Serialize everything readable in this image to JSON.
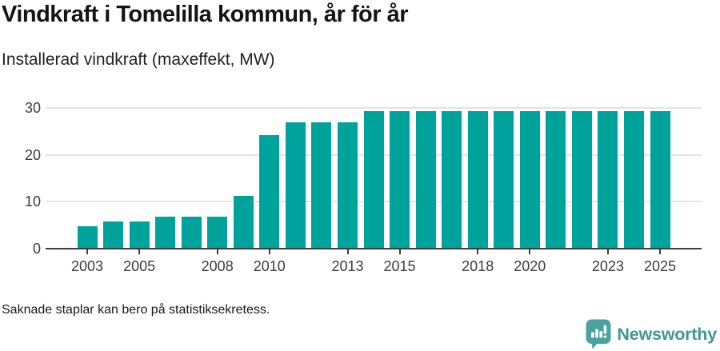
{
  "header": {
    "title": "Vindkraft i Tomelilla kommun, år för år",
    "subtitle": "Installerad vindkraft (maxeffekt, MW)"
  },
  "chart_data": {
    "type": "bar",
    "title": "Vindkraft i Tomelilla kommun, år för år",
    "subtitle": "Installerad vindkraft (maxeffekt, MW)",
    "xlabel": "",
    "ylabel": "Installerad vindkraft (maxeffekt, MW)",
    "categories": [
      2003,
      2004,
      2005,
      2006,
      2007,
      2008,
      2009,
      2010,
      2011,
      2012,
      2013,
      2014,
      2015,
      2016,
      2017,
      2018,
      2019,
      2020,
      2021,
      2022,
      2023,
      2024,
      2025
    ],
    "values": [
      4.6,
      5.7,
      5.7,
      6.6,
      6.6,
      6.6,
      11.1,
      24.0,
      26.7,
      26.7,
      26.7,
      29.2,
      29.2,
      29.2,
      29.2,
      29.2,
      29.2,
      29.2,
      29.2,
      29.2,
      29.2,
      29.2,
      29.2
    ],
    "ylim": [
      0,
      30
    ],
    "yticks": [
      0,
      10,
      20,
      30
    ],
    "xtick_labels": [
      "2003",
      "2005",
      "2008",
      "2010",
      "2013",
      "2015",
      "2018",
      "2020",
      "2023",
      "2025"
    ],
    "grid": true,
    "legend": false,
    "bar_color": "#00a39b"
  },
  "footer": {
    "note": "Saknade staplar kan bero på statistiksekretess.",
    "brand": "Newsworthy"
  },
  "colors": {
    "bar": "#00a39b",
    "title_text": "#141414",
    "axis_text": "#3d3d3d",
    "gridline": "#e4e4e4",
    "axis_line": "#3d3d3d",
    "logo_mark": "#4aa39e",
    "logo_text": "#3f9792",
    "background": "#ffffff"
  }
}
